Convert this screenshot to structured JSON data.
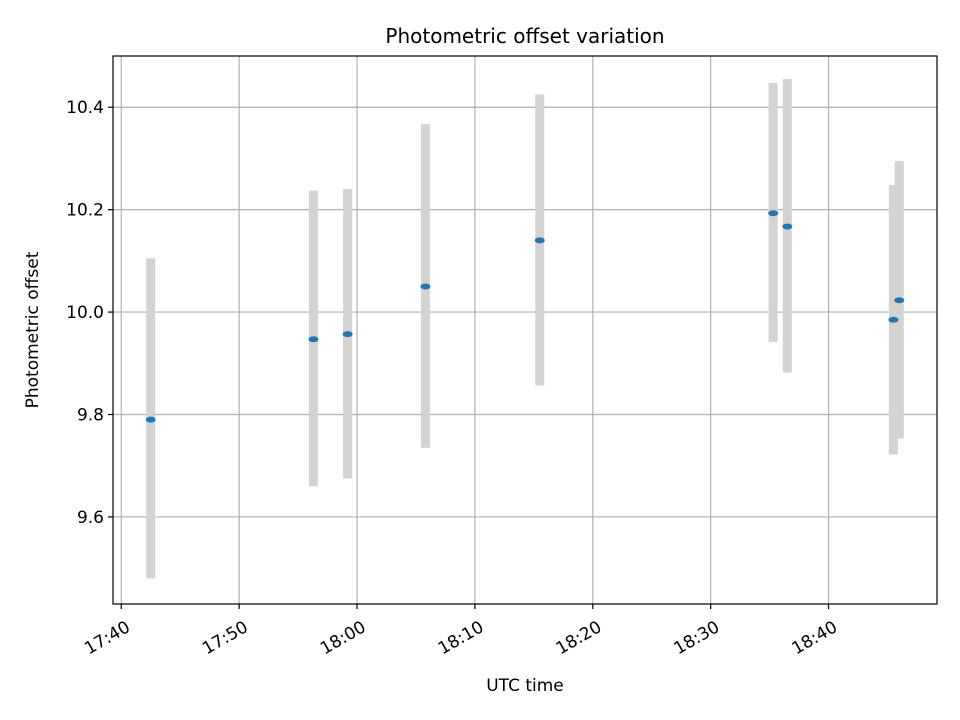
{
  "chart_data": {
    "type": "scatter",
    "title": "Photometric offset variation",
    "xlabel": "UTC time",
    "ylabel": "Photometric offset",
    "x_tick_labels": [
      "17:40",
      "17:50",
      "18:00",
      "18:10",
      "18:20",
      "18:30",
      "18:40"
    ],
    "x_tick_minutes": [
      0,
      10,
      20,
      30,
      40,
      50,
      60
    ],
    "xlim": [
      "17:39.3",
      "18:49.2"
    ],
    "y_ticks": [
      9.6,
      9.8,
      10.0,
      10.2,
      10.4
    ],
    "y_tick_labels": [
      "9.6",
      "9.8",
      "10.0",
      "10.2",
      "10.4"
    ],
    "ylim": [
      9.43,
      10.5
    ],
    "grid": true,
    "points": [
      {
        "time": "17:42.5",
        "y": 9.79,
        "err_low": 9.48,
        "err_high": 10.105
      },
      {
        "time": "17:56.3",
        "y": 9.947,
        "err_low": 9.66,
        "err_high": 10.237
      },
      {
        "time": "17:59.2",
        "y": 9.957,
        "err_low": 9.675,
        "err_high": 10.24
      },
      {
        "time": "18:05.8",
        "y": 10.05,
        "err_low": 9.735,
        "err_high": 10.367
      },
      {
        "time": "18:15.5",
        "y": 10.14,
        "err_low": 9.857,
        "err_high": 10.425
      },
      {
        "time": "18:35.3",
        "y": 10.193,
        "err_low": 9.942,
        "err_high": 10.447
      },
      {
        "time": "18:36.5",
        "y": 10.167,
        "err_low": 9.882,
        "err_high": 10.455
      },
      {
        "time": "18:45.5",
        "y": 9.985,
        "err_low": 9.722,
        "err_high": 10.248
      },
      {
        "time": "18:46.0",
        "y": 10.023,
        "err_low": 9.753,
        "err_high": 10.295
      }
    ],
    "colors": {
      "point": "#1f77b4",
      "errorbar": "#d3d3d3",
      "grid": "#b0b0b0",
      "axes": "#000000"
    }
  }
}
